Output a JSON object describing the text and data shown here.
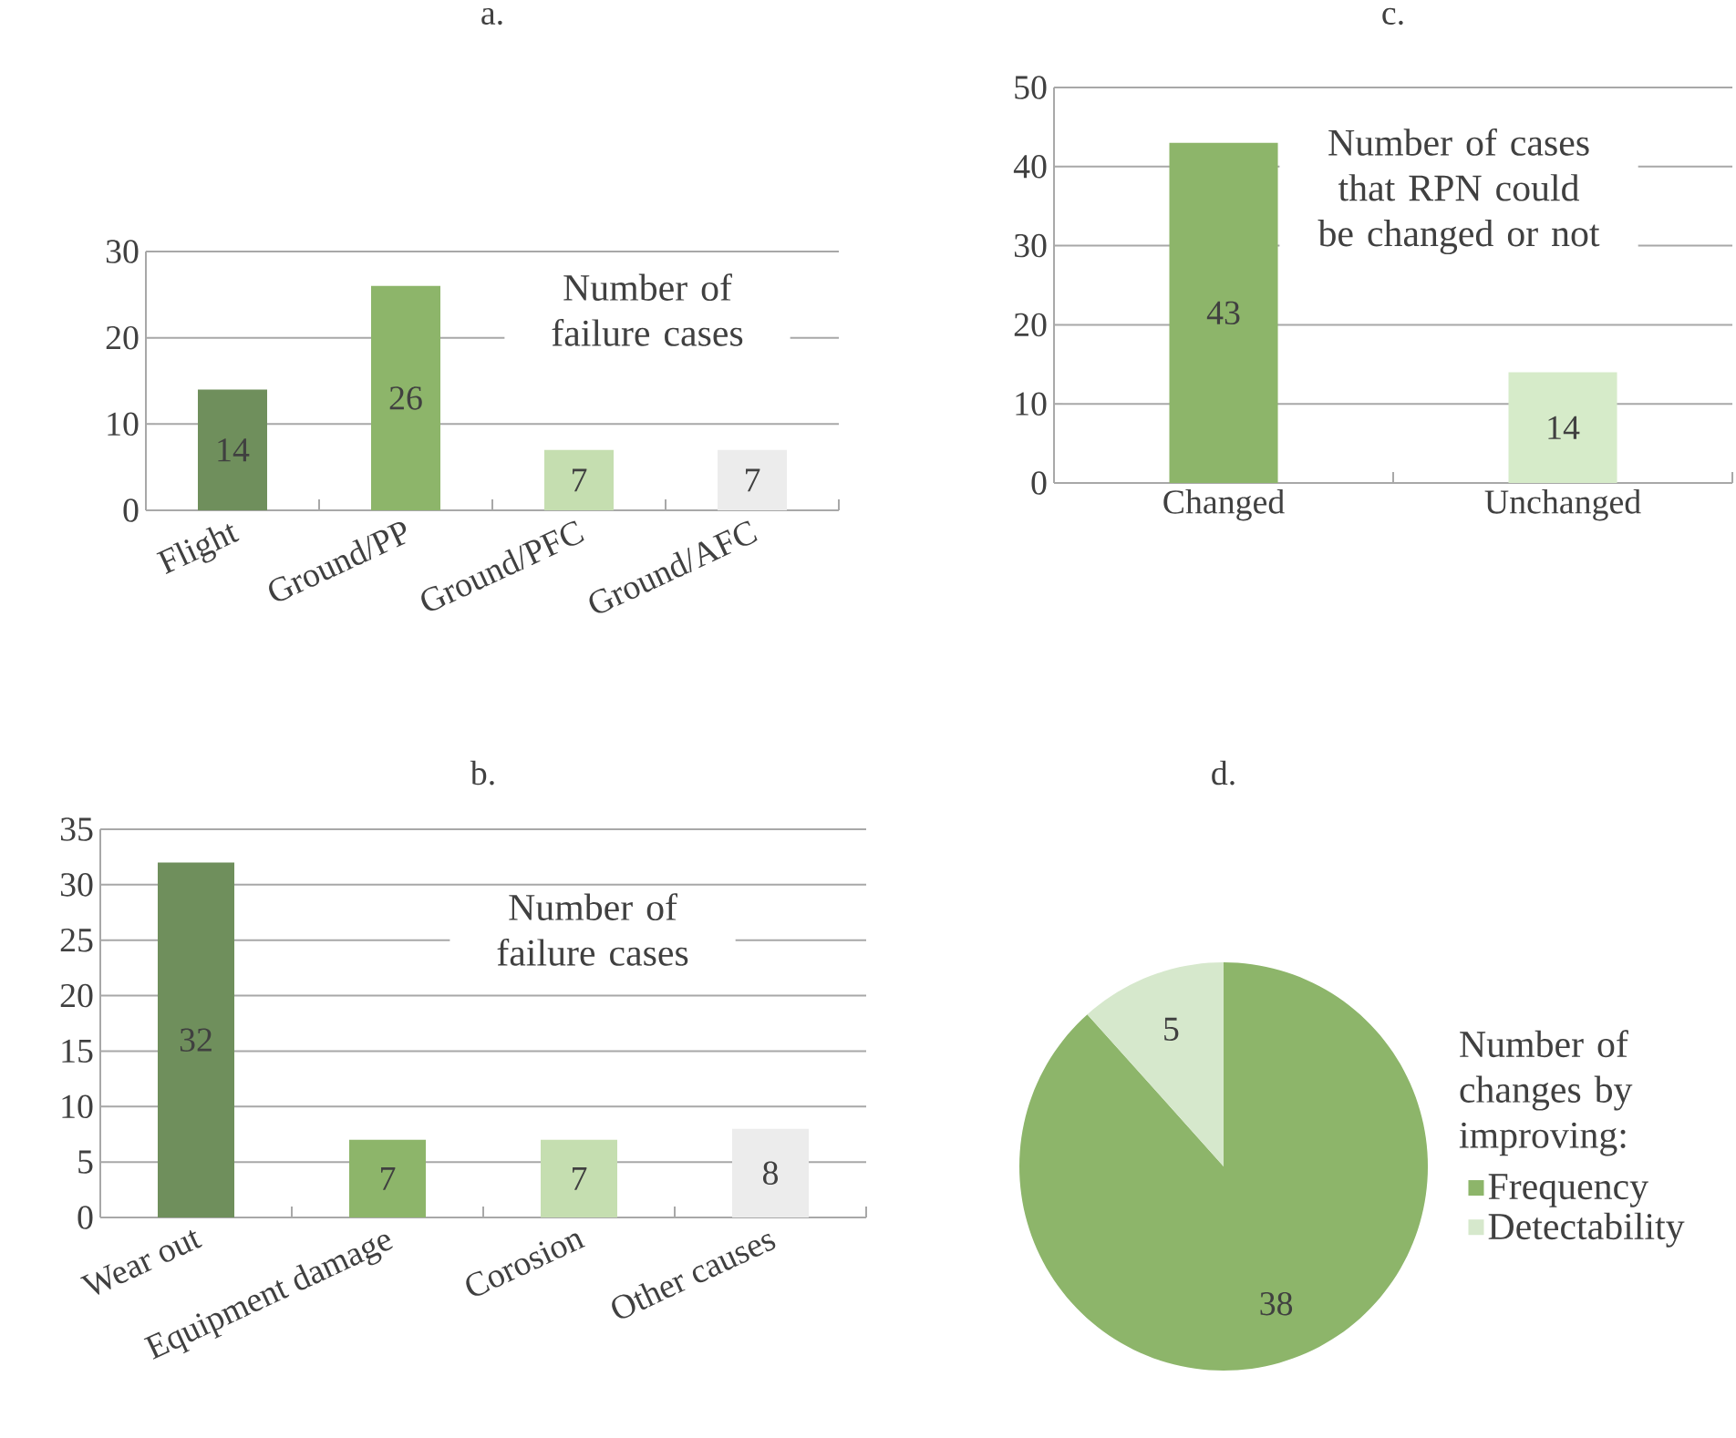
{
  "chart_data": [
    {
      "type": "bar",
      "title": "a.",
      "subtitle": "Number of failure cases",
      "categories": [
        "Flight",
        "Ground/PP",
        "Ground/PFC",
        "Ground/AFC"
      ],
      "values": [
        14,
        26,
        7,
        7
      ],
      "colors": [
        "#6f8f5c",
        "#8db56a",
        "#c5deb0",
        "#ececec"
      ],
      "ylim": [
        0,
        30
      ],
      "yticks": [
        0,
        10,
        20,
        30
      ],
      "grid": "y",
      "data_labels": true
    },
    {
      "type": "bar",
      "title": "c.",
      "subtitle": "Number of cases that RPN could be changed or not",
      "categories": [
        "Changed",
        "Unchanged"
      ],
      "values": [
        43,
        14
      ],
      "colors": [
        "#8db56a",
        "#d6ebc9"
      ],
      "ylim": [
        0,
        50
      ],
      "yticks": [
        0,
        10,
        20,
        30,
        40,
        50
      ],
      "grid": "y",
      "data_labels": true
    },
    {
      "type": "bar",
      "title": "b.",
      "subtitle": "Number of failure cases",
      "categories": [
        "Wear out",
        "Equipment damage",
        "Corosion",
        "Other causes"
      ],
      "values": [
        32,
        7,
        7,
        8
      ],
      "colors": [
        "#6f8f5c",
        "#8db56a",
        "#c5deb0",
        "#ececec"
      ],
      "ylim": [
        0,
        35
      ],
      "yticks": [
        0,
        5,
        10,
        15,
        20,
        25,
        30,
        35
      ],
      "grid": "y",
      "data_labels": true
    },
    {
      "type": "pie",
      "title": "d.",
      "legend_title": "Number of changes by improving:",
      "categories": [
        "Frequency",
        "Detectability"
      ],
      "values": [
        38,
        5
      ],
      "colors": [
        "#8db56a",
        "#d6e8cc"
      ],
      "data_labels": true,
      "legend": "right"
    }
  ]
}
